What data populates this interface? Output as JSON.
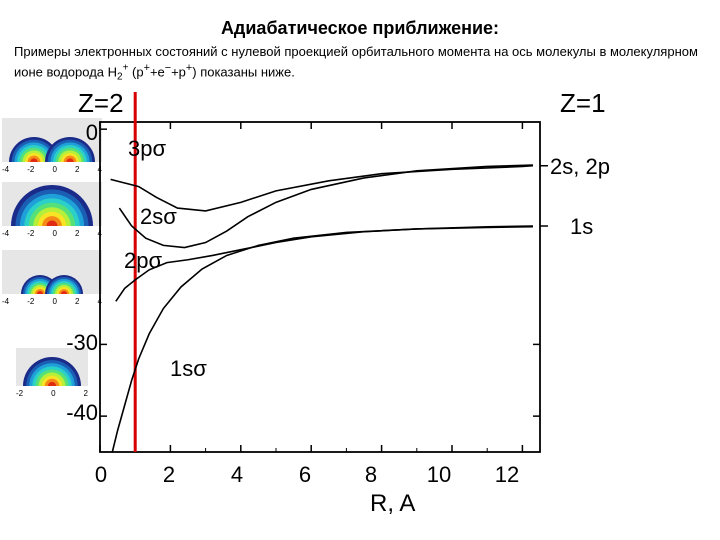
{
  "title": "Адиабатическое приближение:",
  "subtitle_pre": "Примеры электронных состояний с нулевой проекцией орбитального момента на ось молекулы в молекулярном ионе водорода H",
  "subtitle_formula_sub": "2",
  "subtitle_formula_sup": "+",
  "subtitle_paren": " (p",
  "subtitle_p1": "+",
  "subtitle_mid": "+e",
  "subtitle_e1": "−",
  "subtitle_mid2": "+p",
  "subtitle_p2": "+",
  "subtitle_post": ") показаны ниже.",
  "z_left": "Z=2",
  "z_right": "Z=1",
  "orbitals": {
    "o1": "3pσ",
    "o2": "2sσ",
    "o3": "2pσ",
    "o4": "1sσ"
  },
  "right_labels": {
    "r1": "2s, 2p",
    "r2": "1s"
  },
  "x_axis_label": "R, A",
  "y_ticks": [
    "0",
    "-30",
    "-40"
  ],
  "x_ticks": [
    "0",
    "2",
    "4",
    "6",
    "8",
    "10",
    "12"
  ],
  "thumbs": {
    "ticks5": [
      "-4",
      "-2",
      "0",
      "2",
      "4"
    ],
    "ticks3": [
      "-2",
      "0",
      "2"
    ]
  },
  "plot": {
    "type": "line-multi",
    "xlim": [
      0,
      12.5
    ],
    "ylim": [
      -45,
      1
    ],
    "vline_x": 1.0,
    "vline_color": "#d60000",
    "axis_color": "#000000",
    "line_color": "#000000",
    "line_width": 1.6,
    "series": {
      "s_3psigma": [
        [
          0.3,
          -7
        ],
        [
          0.7,
          -7.5
        ],
        [
          1.1,
          -8
        ],
        [
          1.6,
          -9.5
        ],
        [
          2.2,
          -11
        ],
        [
          3.0,
          -11.4
        ],
        [
          4.0,
          -10.2
        ],
        [
          5.0,
          -8.6
        ],
        [
          6.5,
          -7.2
        ],
        [
          8.0,
          -6.2
        ],
        [
          10.0,
          -5.6
        ],
        [
          12.0,
          -5.2
        ],
        [
          12.3,
          -5.1
        ]
      ],
      "s_2ssigma": [
        [
          0.55,
          -11
        ],
        [
          0.9,
          -13.5
        ],
        [
          1.3,
          -15.2
        ],
        [
          1.8,
          -16.2
        ],
        [
          2.4,
          -16.5
        ],
        [
          3.0,
          -15.8
        ],
        [
          3.6,
          -14.2
        ],
        [
          4.2,
          -12.2
        ],
        [
          5.0,
          -10.2
        ],
        [
          6.0,
          -8.4
        ],
        [
          7.5,
          -6.8
        ],
        [
          9.0,
          -5.8
        ],
        [
          11.0,
          -5.2
        ],
        [
          12.3,
          -5.0
        ]
      ],
      "s_2psigma": [
        [
          0.45,
          -24
        ],
        [
          0.7,
          -22.2
        ],
        [
          1.0,
          -21.0
        ],
        [
          1.4,
          -19.6
        ],
        [
          1.9,
          -18.6
        ],
        [
          2.5,
          -18.2
        ],
        [
          3.2,
          -17.6
        ],
        [
          4.0,
          -16.8
        ],
        [
          5.0,
          -15.8
        ],
        [
          6.0,
          -15.0
        ],
        [
          7.5,
          -14.3
        ],
        [
          9.0,
          -13.9
        ],
        [
          11.0,
          -13.6
        ],
        [
          12.3,
          -13.5
        ]
      ],
      "s_1ssigma": [
        [
          0.35,
          -45
        ],
        [
          0.5,
          -42
        ],
        [
          0.7,
          -38.5
        ],
        [
          0.9,
          -35
        ],
        [
          1.1,
          -32
        ],
        [
          1.4,
          -28.5
        ],
        [
          1.8,
          -25
        ],
        [
          2.3,
          -22
        ],
        [
          2.9,
          -19.5
        ],
        [
          3.6,
          -17.6
        ],
        [
          4.5,
          -16.2
        ],
        [
          5.5,
          -15.2
        ],
        [
          7.0,
          -14.4
        ],
        [
          9.0,
          -13.9
        ],
        [
          11.0,
          -13.7
        ],
        [
          12.3,
          -13.6
        ]
      ]
    }
  },
  "thumb_style": {
    "bg": "#e6e6e6",
    "colors_out_to_in": [
      "#1a2b8a",
      "#1b5fb5",
      "#1fa0d8",
      "#2bd0c8",
      "#55e07a",
      "#b6ef3a",
      "#f7e425",
      "#f58a18",
      "#e02a12"
    ]
  }
}
